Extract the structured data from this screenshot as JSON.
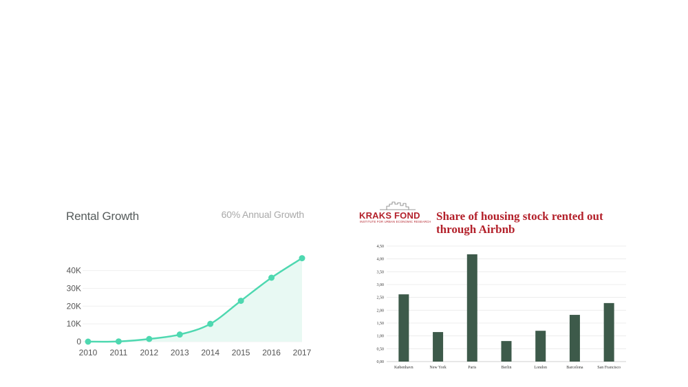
{
  "charts": {
    "rental": {
      "title": "Rental Growth",
      "subtitle": "60% Annual Growth",
      "line_color": "#4ed8b0",
      "fill_color": "#e8f9f3"
    },
    "airbnb": {
      "logo_name": "KRAKS FOND",
      "logo_subtitle": "INSTITUTE FOR URBAN ECONOMIC RESEARCH",
      "title": "Share of housing stock rented out through Airbnb",
      "brand_color": "#b3202a",
      "bar_color": "#3d5a4a"
    }
  },
  "chart_data": [
    {
      "type": "area",
      "title": "Rental Growth",
      "subtitle": "60% Annual Growth",
      "x": [
        "2010",
        "2011",
        "2012",
        "2013",
        "2014",
        "2015",
        "2016",
        "2017"
      ],
      "values": [
        0,
        100,
        1500,
        4000,
        10000,
        23000,
        36000,
        47000
      ],
      "yticks": [
        0,
        10000,
        20000,
        30000,
        40000
      ],
      "ytick_labels": [
        "0",
        "10K",
        "20K",
        "30K",
        "40K"
      ],
      "ylim": [
        0,
        48000
      ],
      "grid": true
    },
    {
      "type": "bar",
      "title": "Share of housing stock rented out through Airbnb",
      "categories": [
        "København",
        "New York",
        "Paris",
        "Berlin",
        "London",
        "Barcelona",
        "San Francisco"
      ],
      "values": [
        2.62,
        1.15,
        4.18,
        0.8,
        1.2,
        1.82,
        2.28
      ],
      "yticks": [
        0,
        0.5,
        1,
        1.5,
        2,
        2.5,
        3,
        3.5,
        4,
        4.5
      ],
      "ytick_labels": [
        "0,00",
        "0,50",
        "1,00",
        "1,50",
        "2,00",
        "2,50",
        "3,00",
        "3,50",
        "4,00",
        "4,50"
      ],
      "ylim": [
        0,
        4.5
      ],
      "grid": true
    }
  ]
}
